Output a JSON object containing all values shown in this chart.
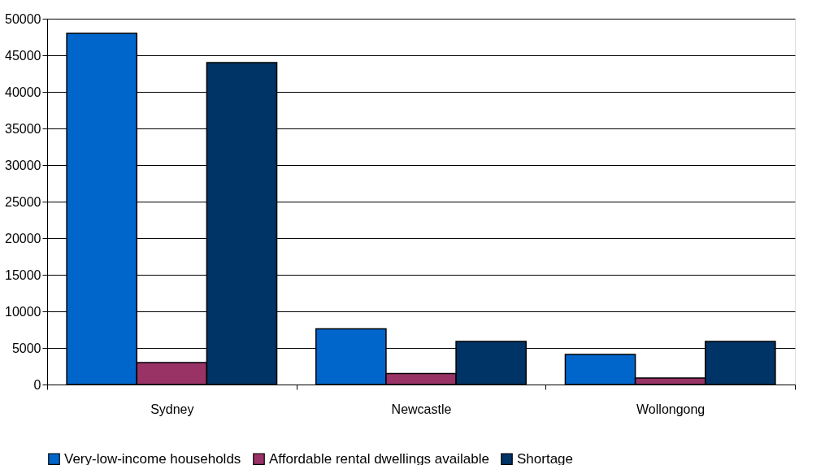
{
  "chart_data": {
    "type": "bar",
    "categories": [
      "Sydney",
      "Newcastle",
      "Wollongong"
    ],
    "series": [
      {
        "name": "Very-low-income households",
        "color": "#0066cc",
        "values": [
          48000,
          7600,
          4100
        ]
      },
      {
        "name": "Affordable rental dwellings available",
        "color": "#993366",
        "values": [
          3000,
          1500,
          900
        ]
      },
      {
        "name": "Shortage",
        "color": "#003366",
        "values": [
          44000,
          5900,
          5900
        ]
      }
    ],
    "ylim": [
      0,
      50000
    ],
    "yticks": [
      0,
      5000,
      10000,
      15000,
      20000,
      25000,
      30000,
      35000,
      40000,
      45000,
      50000
    ],
    "grid": "y",
    "legend": "bottom"
  }
}
